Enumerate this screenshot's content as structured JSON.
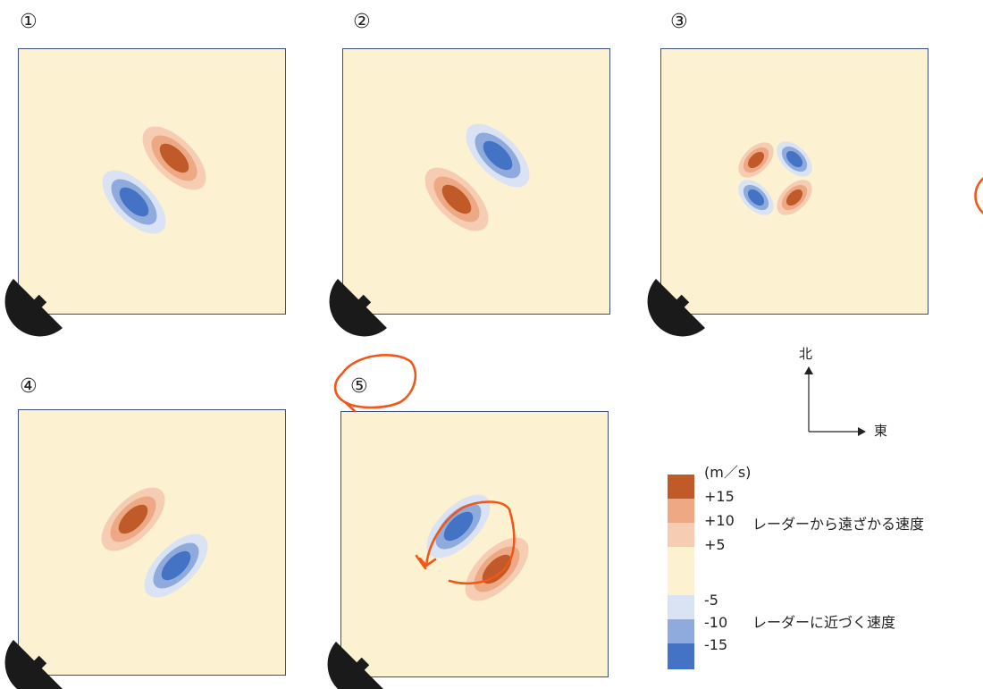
{
  "panels": [
    {
      "label": "①",
      "pattern": "approach-southwest"
    },
    {
      "label": "②",
      "pattern": "approach-northeast"
    },
    {
      "label": "③",
      "pattern": "quadrupole"
    },
    {
      "label": "④",
      "pattern": "approach-southeast"
    },
    {
      "label": "⑤",
      "pattern": "approach-northwest",
      "annotated": true
    }
  ],
  "compass": {
    "north": "北",
    "east": "東"
  },
  "legend": {
    "unit": "(m／s)",
    "ticks": [
      "+15",
      "+10",
      "+5",
      "-5",
      "-10",
      "-15"
    ],
    "receding_label": "レーダーから遠ざかる速度",
    "approaching_label": "レーダーに近づく速度",
    "colors": {
      "recede_strong": "#c05a28",
      "recede_mid": "#eda884",
      "recede_weak": "#f6ccb3",
      "background": "#fcf1d0",
      "approach_weak": "#dae3f3",
      "approach_mid": "#8faadc",
      "approach_strong": "#4472c4"
    }
  },
  "annotation_color": "#f0581a",
  "radar_color": "#1a1a1a"
}
